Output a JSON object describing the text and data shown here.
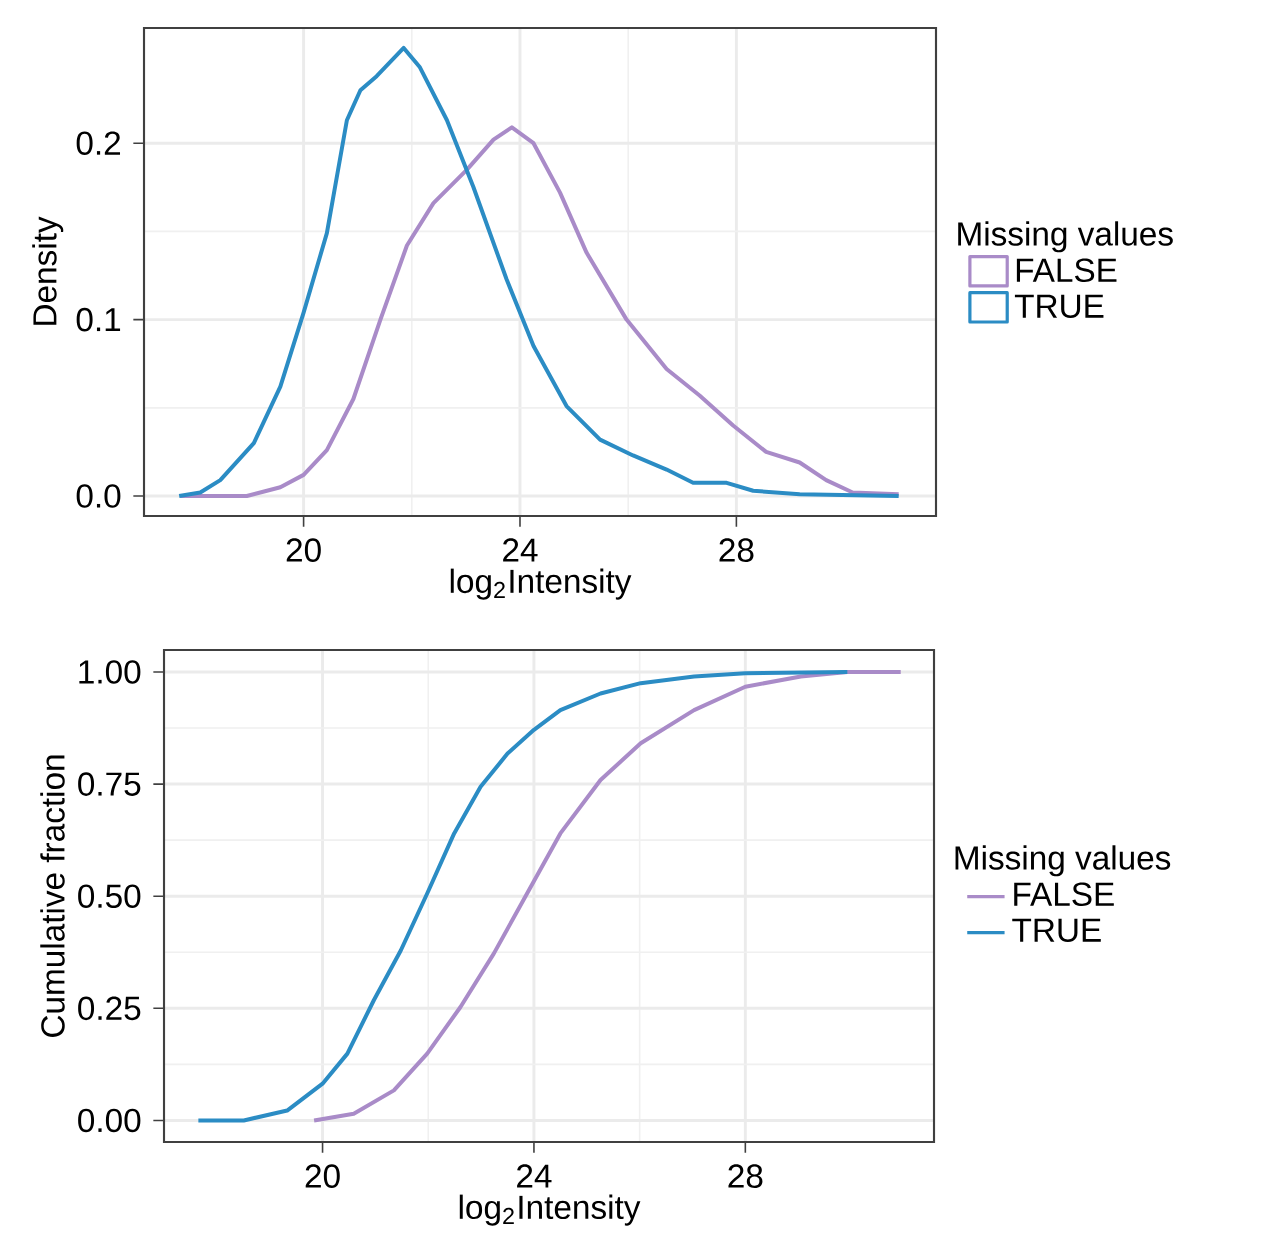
{
  "chart_data": [
    {
      "type": "line",
      "xlabel": "log$_{2}$Intensity",
      "ylabel": "Density",
      "legend_title": "Missing values",
      "legend": "right",
      "grid": true,
      "xlim": [
        17.05,
        31.69
      ],
      "ylim": [
        -0.0113,
        0.2653
      ],
      "xticks": [
        20,
        24,
        28
      ],
      "yticks": [
        {
          "value": 0,
          "label": "0.0"
        },
        {
          "value": 0.1,
          "label": "0.1"
        },
        {
          "value": 0.2,
          "label": "0.2"
        }
      ],
      "series": [
        {
          "name": "FALSE",
          "color": "#a98bc8",
          "x": [
            17.72,
            18.95,
            19.57,
            20.0,
            20.43,
            20.92,
            21.42,
            21.91,
            22.4,
            23.02,
            23.51,
            23.85,
            24.25,
            24.74,
            25.23,
            25.97,
            26.71,
            27.32,
            27.94,
            28.55,
            29.17,
            29.66,
            30.15,
            31.0
          ],
          "values": [
            0,
            0,
            0.005,
            0.012,
            0.026,
            0.055,
            0.1,
            0.142,
            0.166,
            0.185,
            0.202,
            0.209,
            0.2,
            0.172,
            0.138,
            0.1,
            0.072,
            0.057,
            0.04,
            0.025,
            0.019,
            0.009,
            0.002,
            0.001
          ]
        },
        {
          "name": "TRUE",
          "color": "#2b8cc4",
          "x": [
            17.7,
            18.09,
            18.46,
            19.08,
            19.57,
            20.0,
            20.43,
            20.8,
            21.05,
            21.35,
            21.85,
            22.15,
            22.65,
            23.14,
            23.75,
            24.25,
            24.86,
            25.48,
            26.09,
            26.71,
            27.2,
            27.82,
            28.31,
            29.17,
            31.0
          ],
          "values": [
            0,
            0.002,
            0.009,
            0.03,
            0.062,
            0.104,
            0.149,
            0.213,
            0.23,
            0.238,
            0.254,
            0.243,
            0.213,
            0.175,
            0.123,
            0.085,
            0.051,
            0.032,
            0.023,
            0.015,
            0.0075,
            0.0075,
            0.003,
            0.001,
            0
          ]
        }
      ]
    },
    {
      "type": "line",
      "xlabel": "log$_{2}$Intensity",
      "ylabel": "Cumulative fraction",
      "legend_title": "Missing values",
      "legend": "right",
      "grid": true,
      "xlim": [
        17.0,
        31.57
      ],
      "ylim": [
        -0.048,
        1.049
      ],
      "xticks": [
        20,
        24,
        28
      ],
      "yticks": [
        {
          "value": 0,
          "label": "0.00"
        },
        {
          "value": 0.25,
          "label": "0.25"
        },
        {
          "value": 0.5,
          "label": "0.50"
        },
        {
          "value": 0.75,
          "label": "0.75"
        },
        {
          "value": 1,
          "label": "1.00"
        }
      ],
      "series": [
        {
          "name": "FALSE",
          "color": "#a98bc8",
          "x": [
            19.84,
            20.59,
            21.35,
            21.98,
            22.61,
            23.24,
            23.87,
            24.5,
            25.26,
            26.02,
            27.03,
            28.0,
            29.05,
            29.93,
            30.94
          ],
          "values": [
            0,
            0.015,
            0.067,
            0.149,
            0.253,
            0.372,
            0.506,
            0.64,
            0.759,
            0.841,
            0.915,
            0.967,
            0.99,
            1.0,
            1.0
          ]
        },
        {
          "name": "TRUE",
          "color": "#2b8cc4",
          "x": [
            17.65,
            18.51,
            19.33,
            20.0,
            20.47,
            20.97,
            21.48,
            21.98,
            22.49,
            22.99,
            23.5,
            24.0,
            24.5,
            25.26,
            26.02,
            27.03,
            28.0,
            29.93
          ],
          "values": [
            0,
            0,
            0.022,
            0.082,
            0.149,
            0.268,
            0.379,
            0.506,
            0.64,
            0.744,
            0.818,
            0.871,
            0.915,
            0.952,
            0.975,
            0.99,
            0.997,
            1.0
          ]
        }
      ]
    }
  ]
}
